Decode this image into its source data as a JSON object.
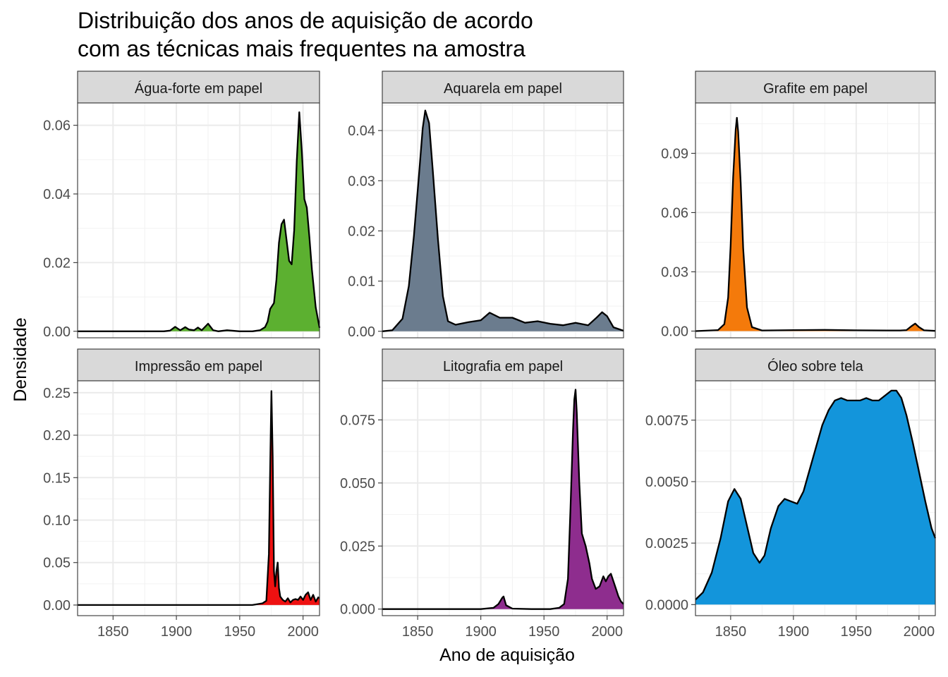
{
  "chart_data": {
    "type": "area",
    "title": [
      "Distribuição dos anos de aquisição de acordo",
      "com as técnicas mais frequentes na amostra"
    ],
    "xlabel": "Ano de aquisição",
    "ylabel": "Densidade",
    "grid": true,
    "xlim": [
      1822,
      2013
    ],
    "x_ticks": [
      1850,
      1900,
      1950,
      2000
    ],
    "x_tick_labels": [
      "1850",
      "1900",
      "1950",
      "2000"
    ],
    "panels": [
      {
        "name": "Água-forte em papel",
        "fill": "#5cb030",
        "ylim": [
          -0.0019,
          0.0665
        ],
        "y_ticks": [
          0,
          0.02,
          0.04,
          0.06
        ],
        "y_tick_labels": [
          "0.00",
          "0.02",
          "0.04",
          "0.06"
        ],
        "x": [
          1822,
          1890,
          1895,
          1899,
          1903,
          1907,
          1910,
          1914,
          1917,
          1920,
          1925,
          1929,
          1933,
          1940,
          1950,
          1960,
          1966,
          1970,
          1972,
          1974,
          1977,
          1979,
          1981,
          1983,
          1985,
          1987,
          1989,
          1991,
          1993,
          1995,
          1997,
          1999,
          2001,
          2003,
          2005,
          2007,
          2010,
          2013
        ],
        "y": [
          0,
          0,
          0.0002,
          0.0013,
          0.0003,
          0.0012,
          0.0005,
          0.0003,
          0.0011,
          0.0003,
          0.0022,
          0.0003,
          0,
          0.0003,
          0,
          0,
          0.0003,
          0.0012,
          0.0028,
          0.0065,
          0.0082,
          0.015,
          0.0258,
          0.0312,
          0.0325,
          0.0265,
          0.0205,
          0.0195,
          0.0295,
          0.0495,
          0.0638,
          0.0525,
          0.0385,
          0.036,
          0.0275,
          0.018,
          0.007,
          0.001
        ]
      },
      {
        "name": "Aquarela em papel",
        "fill": "#6b7c8e",
        "ylim": [
          -0.0013,
          0.0455
        ],
        "y_ticks": [
          0,
          0.01,
          0.02,
          0.03,
          0.04
        ],
        "y_tick_labels": [
          "0.00",
          "0.01",
          "0.02",
          "0.03",
          "0.04"
        ],
        "x": [
          1822,
          1830,
          1838,
          1843,
          1847,
          1851,
          1854,
          1856,
          1859,
          1862,
          1866,
          1870,
          1874,
          1880,
          1890,
          1900,
          1907,
          1915,
          1925,
          1935,
          1945,
          1955,
          1965,
          1975,
          1985,
          1992,
          1996,
          2000,
          2005,
          2013
        ],
        "y": [
          0,
          0.0002,
          0.0025,
          0.009,
          0.019,
          0.031,
          0.0405,
          0.044,
          0.0415,
          0.032,
          0.0185,
          0.007,
          0.002,
          0.0013,
          0.0018,
          0.0022,
          0.0037,
          0.0027,
          0.0027,
          0.0017,
          0.002,
          0.0015,
          0.0012,
          0.0017,
          0.0012,
          0.0028,
          0.0038,
          0.003,
          0.0008,
          0.0001
        ]
      },
      {
        "name": "Grafite em papel",
        "fill": "#f47a0b",
        "ylim": [
          -0.0034,
          0.1155
        ],
        "y_ticks": [
          0,
          0.03,
          0.06,
          0.09
        ],
        "y_tick_labels": [
          "0.00",
          "0.03",
          "0.06",
          "0.09"
        ],
        "x": [
          1822,
          1840,
          1845,
          1848,
          1850,
          1852,
          1854,
          1855,
          1856,
          1858,
          1860,
          1863,
          1867,
          1875,
          1900,
          1925,
          1950,
          1975,
          1985,
          1990,
          1994,
          1997,
          2000,
          2004,
          2013
        ],
        "y": [
          0,
          0.0005,
          0.0035,
          0.017,
          0.043,
          0.078,
          0.102,
          0.108,
          0.101,
          0.075,
          0.042,
          0.012,
          0.002,
          0.0003,
          0.0005,
          0.0006,
          0.0004,
          0.0003,
          0.0003,
          0.0005,
          0.0025,
          0.0038,
          0.002,
          0.0004,
          0.0001
        ]
      },
      {
        "name": "Impressão em papel",
        "fill": "#ee1111",
        "ylim": [
          -0.0125,
          0.264
        ],
        "y_ticks": [
          0,
          0.05,
          0.1,
          0.15,
          0.2,
          0.25
        ],
        "y_tick_labels": [
          "0.00",
          "0.05",
          "0.10",
          "0.15",
          "0.20",
          "0.25"
        ],
        "x": [
          1822,
          1960,
          1968,
          1971,
          1973,
          1974,
          1975,
          1976,
          1977,
          1978,
          1979,
          1980,
          1981,
          1982,
          1983,
          1984,
          1986,
          1988,
          1990,
          1992,
          1994,
          1996,
          1998,
          2000,
          2002,
          2004,
          2006,
          2008,
          2010,
          2012,
          2013
        ],
        "y": [
          0,
          0,
          0.002,
          0.005,
          0.06,
          0.16,
          0.252,
          0.175,
          0.04,
          0.022,
          0.04,
          0.05,
          0.02,
          0.01,
          0.008,
          0.006,
          0.004,
          0.008,
          0.003,
          0.006,
          0.007,
          0.006,
          0.01,
          0.006,
          0.012,
          0.015,
          0.006,
          0.012,
          0.004,
          0.009,
          0.008
        ]
      },
      {
        "name": "Litografia em papel",
        "fill": "#8e2d8e",
        "ylim": [
          -0.0026,
          0.0905
        ],
        "y_ticks": [
          0,
          0.025,
          0.05,
          0.075
        ],
        "y_tick_labels": [
          "0.000",
          "0.025",
          "0.050",
          "0.075"
        ],
        "x": [
          1822,
          1900,
          1910,
          1914,
          1917,
          1918,
          1920,
          1925,
          1940,
          1955,
          1962,
          1966,
          1969,
          1971,
          1973,
          1974,
          1975,
          1976,
          1978,
          1980,
          1983,
          1986,
          1988,
          1991,
          1994,
          1997,
          1999,
          2001,
          2003,
          2005,
          2007,
          2009,
          2011,
          2013
        ],
        "y": [
          0,
          0,
          0.0005,
          0.002,
          0.0045,
          0.005,
          0.0015,
          0.0002,
          0,
          0,
          0.0005,
          0.002,
          0.012,
          0.04,
          0.071,
          0.083,
          0.087,
          0.078,
          0.05,
          0.03,
          0.025,
          0.018,
          0.012,
          0.008,
          0.009,
          0.013,
          0.011,
          0.013,
          0.014,
          0.011,
          0.008,
          0.005,
          0.003,
          0.002
        ]
      },
      {
        "name": "Óleo sobre tela",
        "fill": "#1395db",
        "ylim": [
          -0.00045,
          0.0091
        ],
        "y_ticks": [
          0,
          0.0025,
          0.005,
          0.0075
        ],
        "y_tick_labels": [
          "0.0000",
          "0.0025",
          "0.0050",
          "0.0075"
        ],
        "x": [
          1822,
          1828,
          1835,
          1842,
          1848,
          1853,
          1858,
          1863,
          1868,
          1873,
          1877,
          1882,
          1888,
          1893,
          1898,
          1903,
          1908,
          1913,
          1918,
          1923,
          1928,
          1933,
          1938,
          1943,
          1948,
          1953,
          1958,
          1963,
          1968,
          1973,
          1978,
          1982,
          1986,
          1990,
          1995,
          2000,
          2005,
          2010,
          2013
        ],
        "y": [
          0.0002,
          0.0005,
          0.0013,
          0.0027,
          0.0042,
          0.0047,
          0.0043,
          0.0032,
          0.0021,
          0.0017,
          0.002,
          0.0031,
          0.004,
          0.0043,
          0.0042,
          0.0041,
          0.0046,
          0.0055,
          0.0064,
          0.0073,
          0.0079,
          0.0083,
          0.0084,
          0.0083,
          0.0083,
          0.0083,
          0.0084,
          0.0083,
          0.0083,
          0.0085,
          0.0087,
          0.0087,
          0.0084,
          0.0077,
          0.0066,
          0.0054,
          0.0042,
          0.0031,
          0.0027
        ]
      }
    ]
  }
}
